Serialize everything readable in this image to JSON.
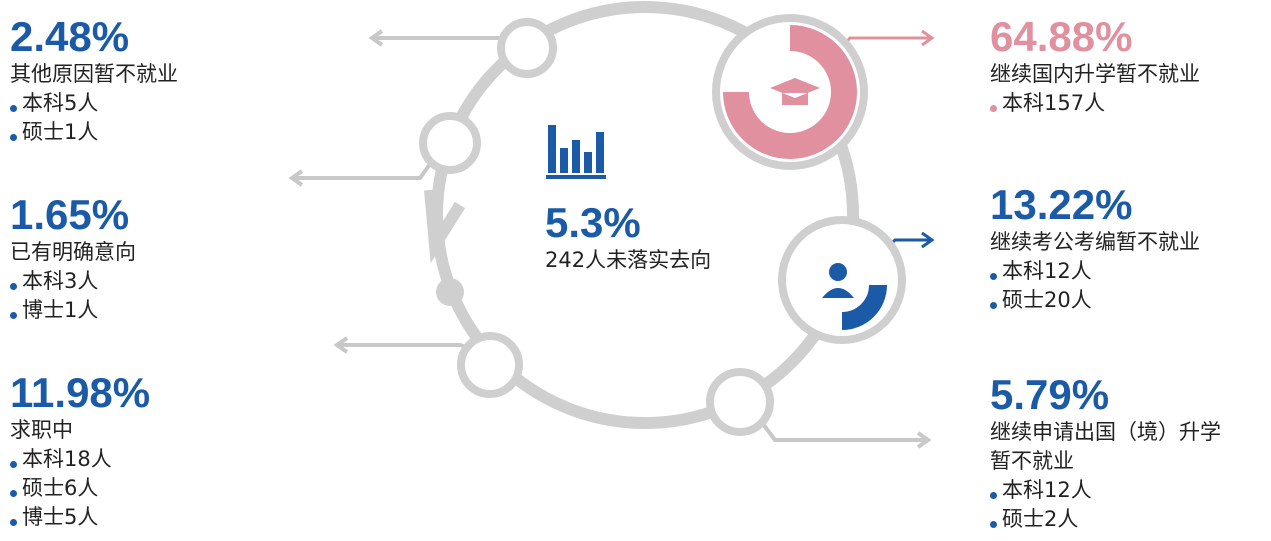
{
  "center": {
    "percent": "5.3%",
    "label": "242人未落实去向"
  },
  "left": [
    {
      "percent": "2.48%",
      "lines": [
        "其他原因暂不就业"
      ],
      "bullets": [
        "本科5人",
        "硕士1人"
      ]
    },
    {
      "percent": "1.65%",
      "lines": [
        "已有明确意向"
      ],
      "bullets": [
        "本科3人",
        "博士1人"
      ]
    },
    {
      "percent": "11.98%",
      "lines": [
        "求职中"
      ],
      "bullets": [
        "本科18人",
        "硕士6人",
        "博士5人"
      ]
    }
  ],
  "right": [
    {
      "percent": "64.88%",
      "lines": [
        "继续国内升学暂不就业"
      ],
      "bullets": [
        "本科157人"
      ]
    },
    {
      "percent": "13.22%",
      "lines": [
        "继续考公考编暂不就业"
      ],
      "bullets": [
        "本科12人",
        "硕士20人"
      ]
    },
    {
      "percent": "5.79%",
      "lines": [
        "继续申请出国（境）升学",
        "暂不就业"
      ],
      "bullets": [
        "本科12人",
        "硕士2人"
      ]
    }
  ]
}
